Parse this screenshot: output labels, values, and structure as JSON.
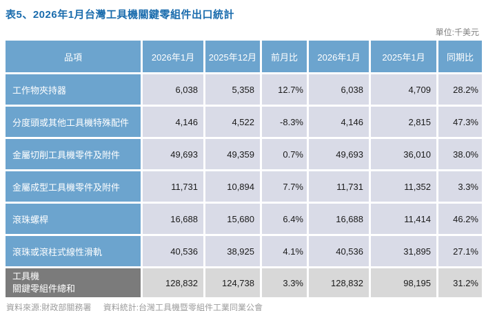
{
  "page": {
    "title": "表5、2026年1月台灣工具機關鍵零組件出口統計",
    "unit_label": "單位:千美元"
  },
  "table": {
    "columns": [
      "品項",
      "2026年1月",
      "2025年12月",
      "前月比",
      "2026年1月",
      "2025年1月",
      "同期比"
    ],
    "rows": [
      {
        "label": "工作物夾持器",
        "values": [
          "6,038",
          "5,358",
          "12.7%",
          "6,038",
          "4,709",
          "28.2%"
        ]
      },
      {
        "label": "分度頭或其他工具機特殊配件",
        "values": [
          "4,146",
          "4,522",
          "-8.3%",
          "4,146",
          "2,815",
          "47.3%"
        ]
      },
      {
        "label": "金屬切削工具機零件及附件",
        "values": [
          "49,693",
          "49,359",
          "0.7%",
          "49,693",
          "36,010",
          "38.0%"
        ]
      },
      {
        "label": "金屬成型工具機零件及附件",
        "values": [
          "11,731",
          "10,894",
          "7.7%",
          "11,731",
          "11,352",
          "3.3%"
        ]
      },
      {
        "label": "滾珠螺桿",
        "values": [
          "16,688",
          "15,680",
          "6.4%",
          "16,688",
          "11,414",
          "46.2%"
        ]
      },
      {
        "label": "滾珠或滾柱式線性滑軌",
        "values": [
          "40,536",
          "38,925",
          "4.1%",
          "40,536",
          "31,895",
          "27.1%"
        ]
      }
    ],
    "total": {
      "label_line1": "工具機",
      "label_line2": "關鍵零組件總和",
      "values": [
        "128,832",
        "124,738",
        "3.3%",
        "128,832",
        "98,195",
        "31.2%"
      ]
    }
  },
  "footer": {
    "source": "資料來源:財政部關務署",
    "stats": "資料統計:台灣工具機暨零組件工業同業公會"
  },
  "colors": {
    "title_blue": "#1a6cad",
    "header_blue": "#6ca4ce",
    "data_cell_lavender": "#d9dbe7",
    "total_label_grey": "#7b7b7b",
    "total_cell_grey": "#d8d8d8",
    "footer_grey": "#9c9c9c"
  },
  "chart_data": {
    "type": "table",
    "title": "表5、2026年1月台灣工具機關鍵零組件出口統計",
    "unit": "千美元",
    "columns": [
      "品項",
      "2026年1月",
      "2025年12月",
      "前月比",
      "2026年1月",
      "2025年1月",
      "同期比"
    ],
    "rows": [
      [
        "工作物夾持器",
        6038,
        5358,
        "12.7%",
        6038,
        4709,
        "28.2%"
      ],
      [
        "分度頭或其他工具機特殊配件",
        4146,
        4522,
        "-8.3%",
        4146,
        2815,
        "47.3%"
      ],
      [
        "金屬切削工具機零件及附件",
        49693,
        49359,
        "0.7%",
        49693,
        36010,
        "38.0%"
      ],
      [
        "金屬成型工具機零件及附件",
        11731,
        10894,
        "7.7%",
        11731,
        11352,
        "3.3%"
      ],
      [
        "滾珠螺桿",
        16688,
        15680,
        "6.4%",
        16688,
        11414,
        "46.2%"
      ],
      [
        "滾珠或滾柱式線性滑軌",
        40536,
        38925,
        "4.1%",
        40536,
        31895,
        "27.1%"
      ]
    ],
    "total_row": [
      "工具機關鍵零組件總和",
      128832,
      124738,
      "3.3%",
      128832,
      98195,
      "31.2%"
    ],
    "source": "財政部關務署",
    "statistics_by": "台灣工具機暨零組件工業同業公會"
  }
}
